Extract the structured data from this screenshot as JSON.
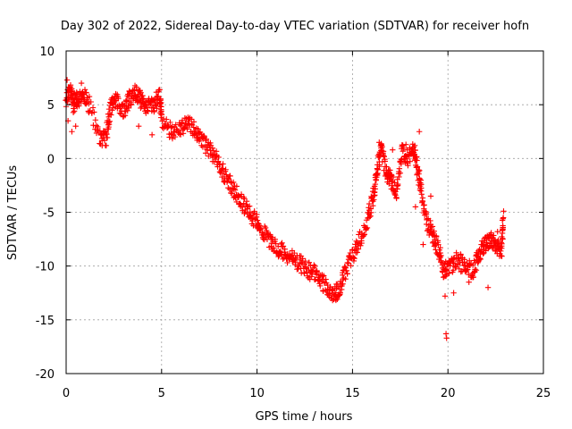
{
  "chart_data": {
    "type": "scatter",
    "title": "Day 302 of 2022, Sidereal Day-to-day VTEC variation (SDTVAR) for receiver hofn",
    "xlabel": "GPS time / hours",
    "ylabel": "SDTVAR / TECUs",
    "xlim": [
      0,
      25
    ],
    "ylim": [
      -20,
      10
    ],
    "xticks": [
      0,
      5,
      10,
      15,
      20,
      25
    ],
    "yticks": [
      -20,
      -15,
      -10,
      -5,
      0,
      5,
      10
    ],
    "xtick_labels": [
      "0",
      "5",
      "10",
      "15",
      "20",
      "25"
    ],
    "ytick_labels": [
      "-20",
      "-15",
      "-10",
      "-5",
      "0",
      "5",
      "10"
    ],
    "grid": true,
    "marker": "+",
    "series_color": "#ff0000",
    "series": [
      {
        "name": "SDTVAR",
        "trend": [
          [
            0.0,
            5.5
          ],
          [
            0.2,
            6.5
          ],
          [
            0.4,
            5.0
          ],
          [
            0.6,
            5.5
          ],
          [
            0.9,
            6.0
          ],
          [
            1.2,
            5.0
          ],
          [
            1.8,
            1.8
          ],
          [
            2.1,
            2.0
          ],
          [
            2.3,
            4.5
          ],
          [
            2.6,
            5.5
          ],
          [
            3.0,
            4.5
          ],
          [
            3.3,
            5.5
          ],
          [
            3.6,
            6.2
          ],
          [
            3.9,
            5.5
          ],
          [
            4.2,
            4.8
          ],
          [
            4.6,
            5.0
          ],
          [
            4.9,
            6.0
          ],
          [
            5.0,
            3.5
          ],
          [
            5.5,
            2.5
          ],
          [
            6.0,
            2.8
          ],
          [
            6.4,
            3.5
          ],
          [
            6.8,
            2.5
          ],
          [
            7.2,
            1.5
          ],
          [
            7.6,
            0.5
          ],
          [
            8.0,
            -0.5
          ],
          [
            8.4,
            -1.8
          ],
          [
            8.8,
            -3.0
          ],
          [
            9.2,
            -4.0
          ],
          [
            9.6,
            -5.0
          ],
          [
            10.0,
            -6.0
          ],
          [
            10.4,
            -7.0
          ],
          [
            10.8,
            -8.0
          ],
          [
            11.2,
            -8.5
          ],
          [
            11.6,
            -9.0
          ],
          [
            12.0,
            -9.5
          ],
          [
            12.4,
            -10.0
          ],
          [
            12.8,
            -10.5
          ],
          [
            13.2,
            -11.0
          ],
          [
            13.6,
            -11.8
          ],
          [
            14.0,
            -12.6
          ],
          [
            14.3,
            -12.2
          ],
          [
            14.6,
            -10.5
          ],
          [
            15.0,
            -9.0
          ],
          [
            15.4,
            -7.5
          ],
          [
            15.8,
            -5.5
          ],
          [
            16.1,
            -3.5
          ],
          [
            16.3,
            -1.0
          ],
          [
            16.5,
            1.0
          ],
          [
            16.8,
            -1.5
          ],
          [
            17.0,
            -2.0
          ],
          [
            17.3,
            -3.0
          ],
          [
            17.6,
            0.5
          ],
          [
            17.9,
            0.0
          ],
          [
            18.2,
            1.0
          ],
          [
            18.4,
            -1.0
          ],
          [
            18.6,
            -3.0
          ],
          [
            18.9,
            -6.0
          ],
          [
            19.2,
            -7.0
          ],
          [
            19.5,
            -8.5
          ],
          [
            19.8,
            -10.5
          ],
          [
            20.1,
            -10.0
          ],
          [
            20.5,
            -9.5
          ],
          [
            20.9,
            -10.0
          ],
          [
            21.3,
            -10.5
          ],
          [
            21.6,
            -9.0
          ],
          [
            21.9,
            -8.0
          ],
          [
            22.2,
            -7.5
          ],
          [
            22.5,
            -8.0
          ],
          [
            22.8,
            -8.5
          ],
          [
            22.9,
            -5.5
          ]
        ],
        "outliers": [
          [
            0.05,
            7.3
          ],
          [
            0.1,
            3.5
          ],
          [
            0.3,
            2.5
          ],
          [
            0.5,
            3.0
          ],
          [
            0.8,
            7.0
          ],
          [
            1.1,
            5.2
          ],
          [
            3.8,
            3.0
          ],
          [
            4.5,
            2.2
          ],
          [
            16.4,
            1.5
          ],
          [
            16.6,
            0.5
          ],
          [
            17.1,
            0.8
          ],
          [
            17.8,
            1.3
          ],
          [
            18.5,
            2.5
          ],
          [
            18.3,
            -4.5
          ],
          [
            18.7,
            -8.0
          ],
          [
            19.1,
            -3.5
          ],
          [
            19.6,
            -9.2
          ],
          [
            19.85,
            -12.8
          ],
          [
            19.9,
            -16.3
          ],
          [
            19.93,
            -16.7
          ],
          [
            20.3,
            -12.5
          ],
          [
            21.1,
            -11.5
          ],
          [
            22.1,
            -12.0
          ],
          [
            22.6,
            -6.8
          ]
        ]
      }
    ]
  }
}
